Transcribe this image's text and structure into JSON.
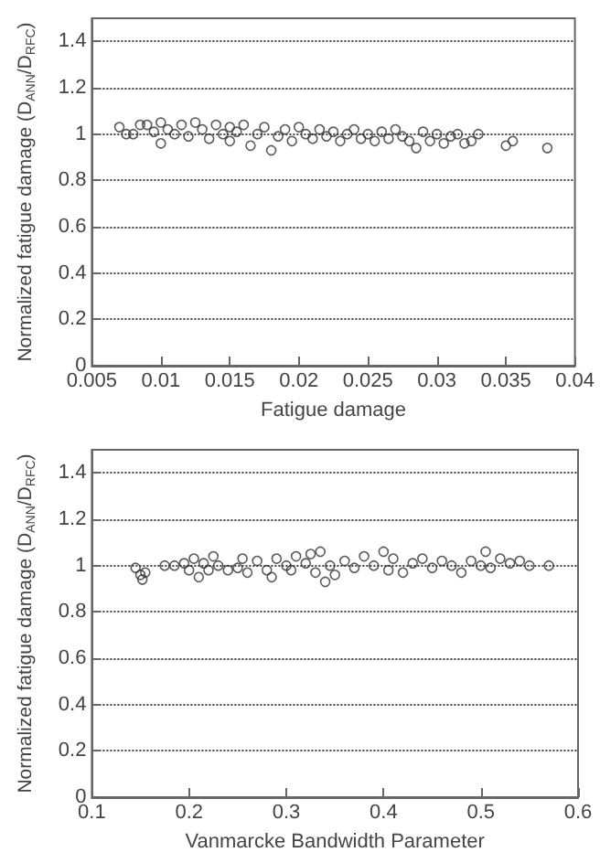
{
  "chart_data": [
    {
      "type": "scatter",
      "xlabel": "Fatigue damage",
      "ylabel": "Normalized fatigue damage (D$_{ANN}$/D$_{RFC}$)",
      "color": "#333333",
      "marker": "circle",
      "grid": "y",
      "xlim": [
        0.005,
        0.04
      ],
      "xticks": [
        0.005,
        0.01,
        0.015,
        0.02,
        0.025,
        0.03,
        0.035,
        0.04
      ],
      "ylim": [
        0,
        1.5
      ],
      "yticks": [
        0,
        0.2,
        0.4,
        0.6,
        0.8,
        1,
        1.2,
        1.4
      ],
      "x": [
        0.007,
        0.0075,
        0.008,
        0.0085,
        0.009,
        0.0095,
        0.01,
        0.01,
        0.0105,
        0.011,
        0.0115,
        0.012,
        0.0125,
        0.013,
        0.0135,
        0.014,
        0.0145,
        0.015,
        0.015,
        0.0155,
        0.016,
        0.0165,
        0.017,
        0.0175,
        0.018,
        0.0185,
        0.019,
        0.0195,
        0.02,
        0.0205,
        0.021,
        0.0215,
        0.022,
        0.0225,
        0.023,
        0.0235,
        0.024,
        0.0245,
        0.025,
        0.0255,
        0.026,
        0.0265,
        0.027,
        0.0275,
        0.028,
        0.0285,
        0.029,
        0.0295,
        0.03,
        0.0305,
        0.031,
        0.0315,
        0.032,
        0.0325,
        0.033,
        0.035,
        0.0355,
        0.038
      ],
      "values": [
        1.03,
        1.0,
        1.0,
        1.04,
        1.04,
        1.01,
        0.96,
        1.05,
        1.02,
        1.0,
        1.04,
        0.99,
        1.05,
        1.02,
        0.98,
        1.04,
        1.0,
        1.03,
        0.97,
        1.01,
        1.04,
        0.95,
        1.0,
        1.03,
        0.93,
        0.99,
        1.02,
        0.97,
        1.03,
        1.0,
        0.98,
        1.02,
        0.99,
        1.01,
        0.97,
        1.0,
        1.02,
        0.98,
        1.0,
        0.97,
        1.01,
        0.98,
        1.02,
        0.99,
        0.97,
        0.94,
        1.01,
        0.97,
        1.0,
        0.96,
        0.99,
        1.0,
        0.96,
        0.97,
        1.0,
        0.95,
        0.97,
        0.94
      ]
    },
    {
      "type": "scatter",
      "xlabel": "Vanmarcke Bandwidth Parameter",
      "ylabel": "Normalized fatigue damage (D$_{ANN}$/D$_{RFC}$)",
      "color": "#333333",
      "marker": "circle",
      "grid": "y",
      "xlim": [
        0.1,
        0.6
      ],
      "xticks": [
        0.1,
        0.2,
        0.3,
        0.4,
        0.5,
        0.6
      ],
      "ylim": [
        0,
        1.5
      ],
      "yticks": [
        0,
        0.2,
        0.4,
        0.6,
        0.8,
        1,
        1.2,
        1.4
      ],
      "x": [
        0.145,
        0.15,
        0.152,
        0.155,
        0.175,
        0.185,
        0.195,
        0.2,
        0.205,
        0.21,
        0.215,
        0.22,
        0.225,
        0.23,
        0.24,
        0.25,
        0.255,
        0.26,
        0.27,
        0.28,
        0.285,
        0.29,
        0.3,
        0.305,
        0.31,
        0.32,
        0.325,
        0.33,
        0.335,
        0.34,
        0.345,
        0.35,
        0.36,
        0.37,
        0.38,
        0.39,
        0.4,
        0.405,
        0.41,
        0.42,
        0.43,
        0.44,
        0.45,
        0.46,
        0.47,
        0.48,
        0.49,
        0.5,
        0.505,
        0.51,
        0.52,
        0.53,
        0.54,
        0.55,
        0.57
      ],
      "values": [
        0.99,
        0.96,
        0.94,
        0.97,
        1.0,
        1.0,
        1.01,
        0.98,
        1.03,
        0.95,
        1.01,
        0.98,
        1.04,
        1.0,
        0.98,
        0.99,
        1.03,
        0.97,
        1.02,
        0.98,
        0.95,
        1.03,
        1.0,
        0.98,
        1.04,
        1.01,
        1.05,
        0.97,
        1.06,
        0.93,
        1.0,
        0.96,
        1.02,
        0.99,
        1.04,
        1.0,
        1.06,
        0.98,
        1.03,
        0.97,
        1.01,
        1.03,
        0.99,
        1.02,
        1.0,
        0.97,
        1.02,
        1.0,
        1.06,
        0.99,
        1.03,
        1.01,
        1.02,
        1.0,
        1.0
      ]
    }
  ]
}
